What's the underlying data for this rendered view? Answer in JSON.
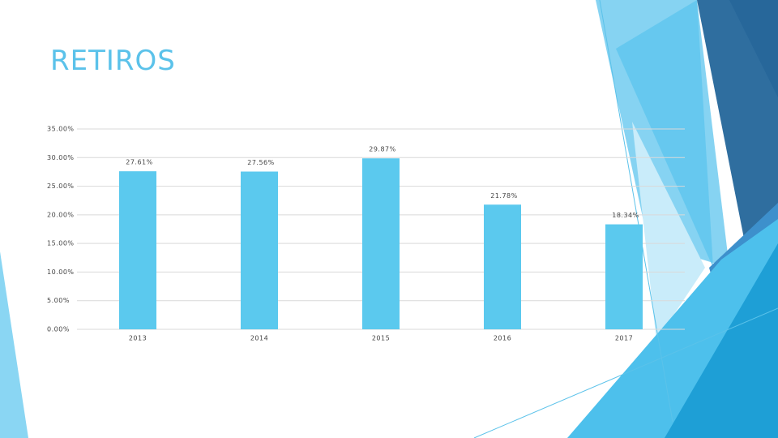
{
  "chart_data": {
    "type": "bar",
    "title": "RETIROS",
    "categories": [
      "2013",
      "2014",
      "2015",
      "2016",
      "2017"
    ],
    "values": [
      27.61,
      27.56,
      29.87,
      21.78,
      18.34
    ],
    "value_labels": [
      "27.61%",
      "27.56%",
      "29.87%",
      "21.78%",
      "18.34%"
    ],
    "color": "#5bc9ee",
    "ylim": [
      0,
      35
    ],
    "yticks": [
      {
        "value": 0,
        "label": "0.00%"
      },
      {
        "value": 5,
        "label": "5.00%"
      },
      {
        "value": 10,
        "label": "10.00%"
      },
      {
        "value": 15,
        "label": "15.00%"
      },
      {
        "value": 20,
        "label": "20.00%"
      },
      {
        "value": 25,
        "label": "25.00%"
      },
      {
        "value": 30,
        "label": "30.00%"
      },
      {
        "value": 35,
        "label": "35.00%"
      }
    ],
    "grid": true
  }
}
